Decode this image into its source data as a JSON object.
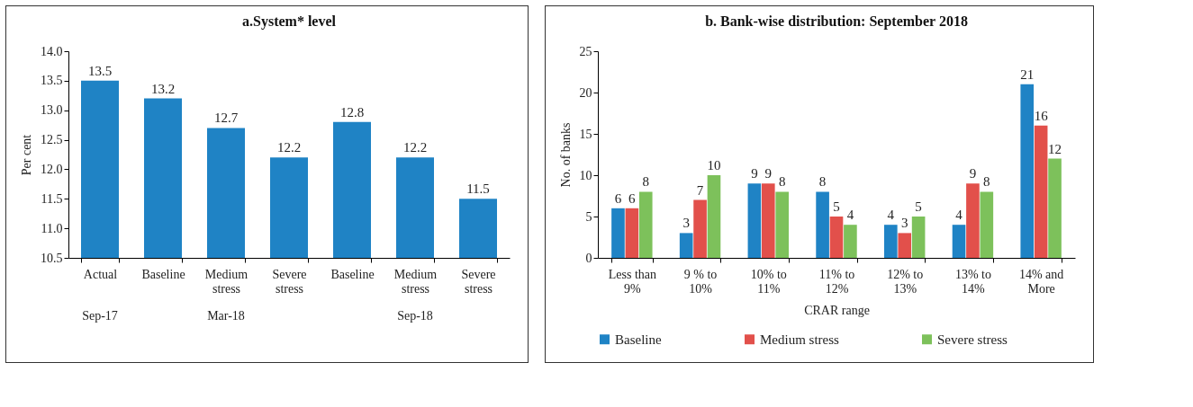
{
  "chart_data": [
    {
      "type": "bar",
      "title": "a.System* level",
      "ylabel": "Per cent",
      "categories": [
        "Actual",
        "Baseline",
        "Medium stress",
        "Severe stress",
        "Baseline",
        "Medium stress",
        "Severe stress"
      ],
      "values": [
        13.5,
        13.2,
        12.7,
        12.2,
        12.8,
        12.2,
        11.5
      ],
      "color": "#1f83c5",
      "data_labels": true,
      "grid": false,
      "legend": false,
      "ylim": [
        10.5,
        14.0
      ],
      "yticks": [
        {
          "value": 10.5,
          "label": "10.5"
        },
        {
          "value": 11,
          "label": "11.0"
        },
        {
          "value": 11.5,
          "label": "11.5"
        },
        {
          "value": 12,
          "label": "12.0"
        },
        {
          "value": 12.5,
          "label": "12.5"
        },
        {
          "value": 13,
          "label": "13.0"
        },
        {
          "value": 13.5,
          "label": "13.5"
        },
        {
          "value": 14,
          "label": "14.0"
        }
      ],
      "annotations": [
        "Sep-17",
        "Mar-18",
        "Sep-18"
      ]
    },
    {
      "type": "bar",
      "title": "b. Bank-wise distribution: September 2018",
      "xlabel": "CRAR range",
      "ylabel": "No. of banks",
      "categories": [
        "Less than 9%",
        "9 % to 10%",
        "10% to 11%",
        "11% to 12%",
        "12% to 13%",
        "13% to 14%",
        "14% and More"
      ],
      "series": [
        {
          "name": "Baseline",
          "color": "#1f83c5",
          "values": [
            6,
            3,
            9,
            8,
            4,
            4,
            21
          ]
        },
        {
          "name": "Medium stress",
          "color": "#e2504b",
          "values": [
            6,
            7,
            9,
            5,
            3,
            9,
            16
          ]
        },
        {
          "name": "Severe stress",
          "color": "#7dc15b",
          "values": [
            8,
            10,
            8,
            4,
            5,
            8,
            12
          ]
        }
      ],
      "data_labels": true,
      "grid": false,
      "legend": "bottom",
      "ylim": [
        0,
        25
      ],
      "yticks": [
        0,
        5,
        10,
        15,
        20,
        25
      ]
    }
  ]
}
